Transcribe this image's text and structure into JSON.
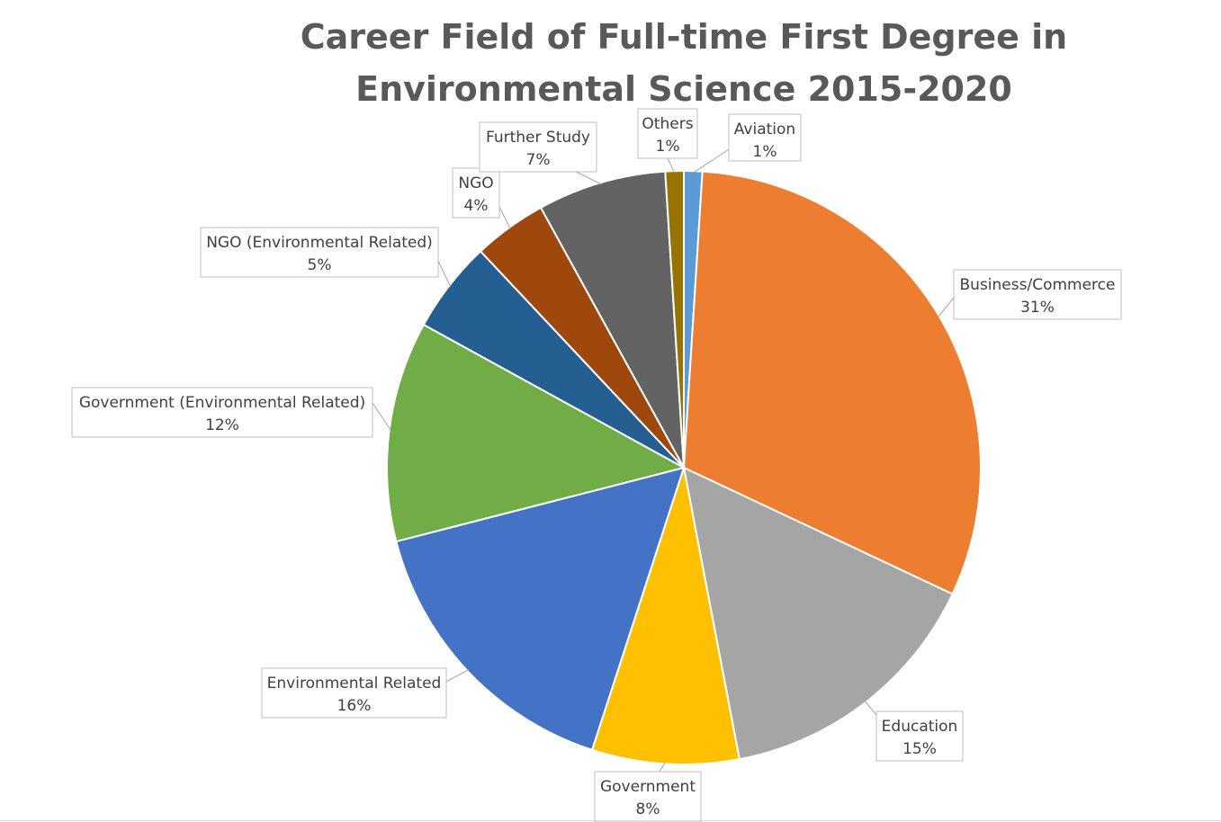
{
  "chart_data": {
    "type": "pie",
    "title": "Career Field of Full-time First Degree in Environmental Science  2015-2020",
    "slices": [
      {
        "name": "Aviation",
        "value": 1,
        "label": "1%",
        "color": "#5b9bd5"
      },
      {
        "name": "Business/Commerce",
        "value": 31,
        "label": "31%",
        "color": "#ed7d31"
      },
      {
        "name": "Education",
        "value": 15,
        "label": "15%",
        "color": "#a5a5a5"
      },
      {
        "name": "Government",
        "value": 8,
        "label": "8%",
        "color": "#ffc000"
      },
      {
        "name": "Environmental Related",
        "value": 16,
        "label": "16%",
        "color": "#4472c4"
      },
      {
        "name": "Government (Environmental Related)",
        "value": 12,
        "label": "12%",
        "color": "#70ad47"
      },
      {
        "name": "NGO (Environmental Related)",
        "value": 5,
        "label": "5%",
        "color": "#255e91"
      },
      {
        "name": "NGO",
        "value": 4,
        "label": "4%",
        "color": "#9e480e"
      },
      {
        "name": "Further Study",
        "value": 7,
        "label": "7%",
        "color": "#636363"
      },
      {
        "name": "Others",
        "value": 1,
        "label": "1%",
        "color": "#997300"
      }
    ],
    "legend": "none",
    "data_labels": "outside-with-leader-lines"
  }
}
